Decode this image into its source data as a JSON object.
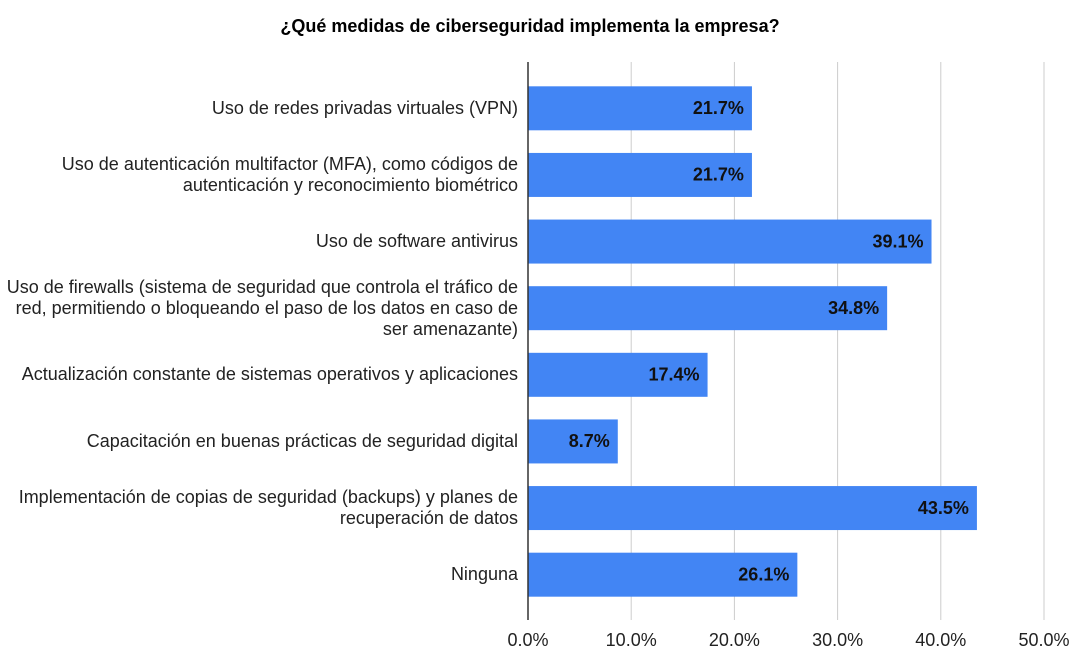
{
  "chart_data": {
    "type": "hbar",
    "title": "¿Qué medidas de ciberseguridad implementa la empresa?",
    "categories": [
      "Uso de redes privadas virtuales (VPN)",
      "Uso de autenticación multifactor (MFA), como códigos de autenticación y reconocimiento biométrico",
      "Uso de software antivirus",
      "Uso de firewalls (sistema de seguridad que controla el tráfico de red, permitiendo o bloqueando el paso de los datos en caso de ser amenazante)",
      "Actualización constante de sistemas operativos y aplicaciones",
      "Capacitación en buenas prácticas de seguridad digital",
      "Implementación de copias de seguridad (backups) y planes de recuperación de datos",
      "Ninguna"
    ],
    "values": [
      21.7,
      21.7,
      39.1,
      34.8,
      17.4,
      8.7,
      43.5,
      26.1
    ],
    "value_labels": [
      "21.7%",
      "21.7%",
      "39.1%",
      "34.8%",
      "17.4%",
      "8.7%",
      "43.5%",
      "26.1%"
    ],
    "color": "#4285f4",
    "xlim": [
      0,
      50
    ],
    "xticks": [
      {
        "value": 0,
        "label": "0.0%"
      },
      {
        "value": 10,
        "label": "10.0%"
      },
      {
        "value": 20,
        "label": "20.0%"
      },
      {
        "value": 30,
        "label": "30.0%"
      },
      {
        "value": 40,
        "label": "40.0%"
      },
      {
        "value": 50,
        "label": "50.0%"
      }
    ],
    "grid": true
  }
}
